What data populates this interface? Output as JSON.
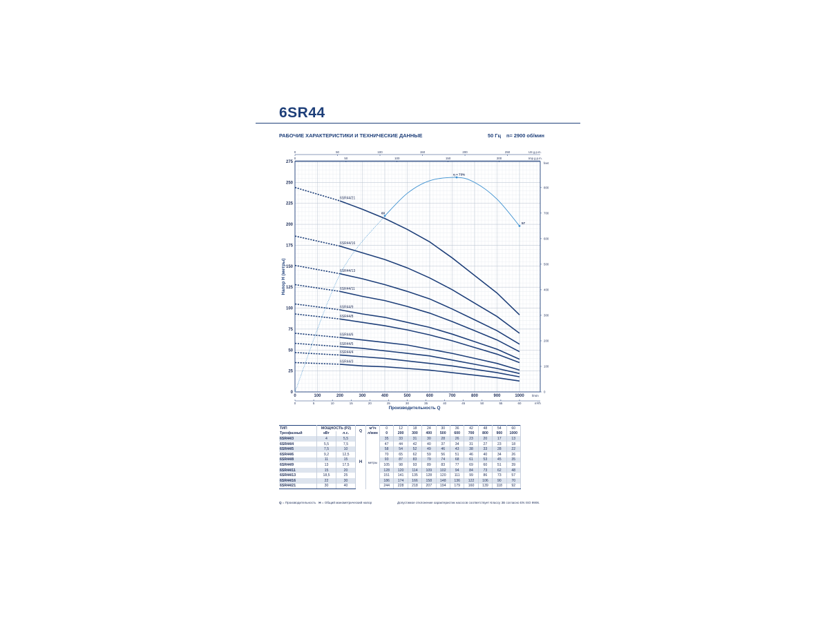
{
  "page": {
    "title": "6SR44",
    "section_title": "РАБОЧИЕ ХАРАКТЕРИСТИКИ И ТЕХНИЧЕСКИЕ ДАННЫЕ",
    "frequency": "50 Гц",
    "speed": "n= 2900 об/мин"
  },
  "colors": {
    "curve": "#1e3f79",
    "efficiency": "#3a8fd0",
    "grid": "#cfd6df",
    "shade": "#dde4ee"
  },
  "chart_data": {
    "type": "line",
    "xlabel": "Производительность Q",
    "ylabel": "Напор H (метры)",
    "x_unit": "l/min",
    "y_right_unit": "feet",
    "xlim": [
      0,
      1000
    ],
    "ylim": [
      0,
      275
    ],
    "x_ticks": [
      "0",
      "100",
      "200",
      "300",
      "400",
      "500",
      "600",
      "700",
      "800",
      "900",
      "1000"
    ],
    "y_ticks": [
      "0",
      "25",
      "50",
      "75",
      "100",
      "125",
      "150",
      "175",
      "200",
      "225",
      "250",
      "275"
    ],
    "y_right_ticks": [
      "0",
      "100",
      "200",
      "300",
      "400",
      "500",
      "600",
      "700",
      "800"
    ],
    "x_top1_unit": "US g.p.m.",
    "x_top1_ticks": [
      "0",
      "50",
      "100",
      "150",
      "200",
      "250"
    ],
    "x_top2_unit": "Imp g.p.m.",
    "x_top2_ticks": [
      "0",
      "50",
      "100",
      "150",
      "200"
    ],
    "x_bottom2_unit": "m³/h",
    "x_bottom2_ticks": [
      "0",
      "5",
      "10",
      "15",
      "20",
      "25",
      "30",
      "35",
      "40",
      "45",
      "50",
      "55",
      "60"
    ],
    "x": [
      0,
      200,
      300,
      400,
      500,
      600,
      700,
      800,
      900,
      1000
    ],
    "dashed_until_x": 200,
    "series": [
      {
        "name": "6SR44/21",
        "values": [
          244,
          228,
          218,
          207,
          194,
          179,
          160,
          139,
          118,
          92
        ]
      },
      {
        "name": "6SR44/16",
        "values": [
          186,
          174,
          166,
          158,
          148,
          136,
          122,
          106,
          90,
          70
        ]
      },
      {
        "name": "6SR44/13",
        "values": [
          151,
          141,
          135,
          128,
          120,
          111,
          99,
          86,
          73,
          57
        ]
      },
      {
        "name": "6SR44/11",
        "values": [
          128,
          120,
          114,
          109,
          102,
          94,
          84,
          73,
          62,
          48
        ]
      },
      {
        "name": "6SR44/9",
        "values": [
          105,
          98,
          93,
          89,
          83,
          77,
          69,
          60,
          51,
          39
        ]
      },
      {
        "name": "6SR44/8",
        "values": [
          93,
          87,
          83,
          79,
          74,
          68,
          61,
          53,
          45,
          35
        ]
      },
      {
        "name": "6SR44/6",
        "values": [
          70,
          65,
          62,
          59,
          56,
          51,
          46,
          40,
          34,
          26
        ]
      },
      {
        "name": "6SR44/5",
        "values": [
          58,
          54,
          52,
          49,
          46,
          43,
          38,
          33,
          28,
          22
        ]
      },
      {
        "name": "6SR44/4",
        "values": [
          47,
          44,
          42,
          40,
          37,
          34,
          31,
          27,
          23,
          18
        ]
      },
      {
        "name": "6SR44/3",
        "values": [
          35,
          33,
          31,
          30,
          28,
          26,
          23,
          20,
          17,
          13
        ]
      }
    ],
    "efficiency": {
      "points": [
        [
          0,
          0
        ],
        [
          200,
          140
        ],
        [
          400,
          210
        ],
        [
          500,
          237
        ],
        [
          600,
          252
        ],
        [
          720,
          256
        ],
        [
          800,
          250
        ],
        [
          900,
          230
        ],
        [
          1000,
          198
        ]
      ],
      "labels": [
        {
          "text": "60",
          "x": 400,
          "y": 210
        },
        {
          "text": "η = 73%",
          "x": 720,
          "y": 256
        },
        {
          "text": "57",
          "x": 1000,
          "y": 198
        }
      ]
    }
  },
  "table": {
    "head": {
      "type": "ТИП",
      "power": "МОЩНОСТЬ (P2)",
      "q": "Q",
      "q_unit_m3h": "м³/ч",
      "q_unit_lmin": "л/мин",
      "phase": "Трехфазный",
      "kw": "кВт",
      "hp": "л.с.",
      "q_m3h": [
        "0",
        "12",
        "18",
        "24",
        "30",
        "36",
        "42",
        "48",
        "54",
        "60"
      ],
      "q_lmin": [
        "0",
        "200",
        "300",
        "400",
        "500",
        "600",
        "700",
        "800",
        "900",
        "1000"
      ],
      "h_label": "H",
      "h_unit": "метры"
    },
    "rows": [
      {
        "type": "6SR44/3",
        "kw": "4",
        "hp": "5,5",
        "h": [
          "35",
          "33",
          "31",
          "30",
          "28",
          "26",
          "23",
          "20",
          "17",
          "13"
        ]
      },
      {
        "type": "6SR44/4",
        "kw": "5,5",
        "hp": "7,5",
        "h": [
          "47",
          "44",
          "42",
          "40",
          "37",
          "34",
          "31",
          "27",
          "23",
          "18"
        ]
      },
      {
        "type": "6SR44/5",
        "kw": "7,5",
        "hp": "10",
        "h": [
          "58",
          "54",
          "52",
          "49",
          "46",
          "43",
          "38",
          "33",
          "28",
          "22"
        ]
      },
      {
        "type": "6SR44/6",
        "kw": "9,2",
        "hp": "12,5",
        "h": [
          "70",
          "65",
          "62",
          "59",
          "56",
          "51",
          "46",
          "40",
          "34",
          "26"
        ]
      },
      {
        "type": "6SR44/8",
        "kw": "11",
        "hp": "15",
        "h": [
          "93",
          "87",
          "83",
          "79",
          "74",
          "68",
          "61",
          "53",
          "45",
          "35"
        ]
      },
      {
        "type": "6SR44/9",
        "kw": "13",
        "hp": "17,5",
        "h": [
          "105",
          "98",
          "93",
          "89",
          "83",
          "77",
          "69",
          "60",
          "51",
          "39"
        ]
      },
      {
        "type": "6SR44/11",
        "kw": "15",
        "hp": "20",
        "h": [
          "128",
          "120",
          "114",
          "109",
          "102",
          "94",
          "84",
          "73",
          "62",
          "48"
        ]
      },
      {
        "type": "6SR44/13",
        "kw": "18,5",
        "hp": "25",
        "h": [
          "151",
          "141",
          "135",
          "128",
          "120",
          "111",
          "99",
          "86",
          "73",
          "57"
        ]
      },
      {
        "type": "6SR44/16",
        "kw": "22",
        "hp": "30",
        "h": [
          "186",
          "174",
          "166",
          "158",
          "148",
          "136",
          "122",
          "106",
          "90",
          "70"
        ]
      },
      {
        "type": "6SR44/21",
        "kw": "30",
        "hp": "40",
        "h": [
          "244",
          "228",
          "218",
          "207",
          "194",
          "179",
          "160",
          "139",
          "118",
          "92"
        ]
      }
    ]
  },
  "footnotes": {
    "q_label": "Q",
    "q_text": " = Производительность",
    "h_label": "H",
    "h_text": " = Общий манометрический напор",
    "tolerance": "Допустимое отклонение характеристик насосов соответствует Классу 3B согласно EN ISO 9906."
  }
}
